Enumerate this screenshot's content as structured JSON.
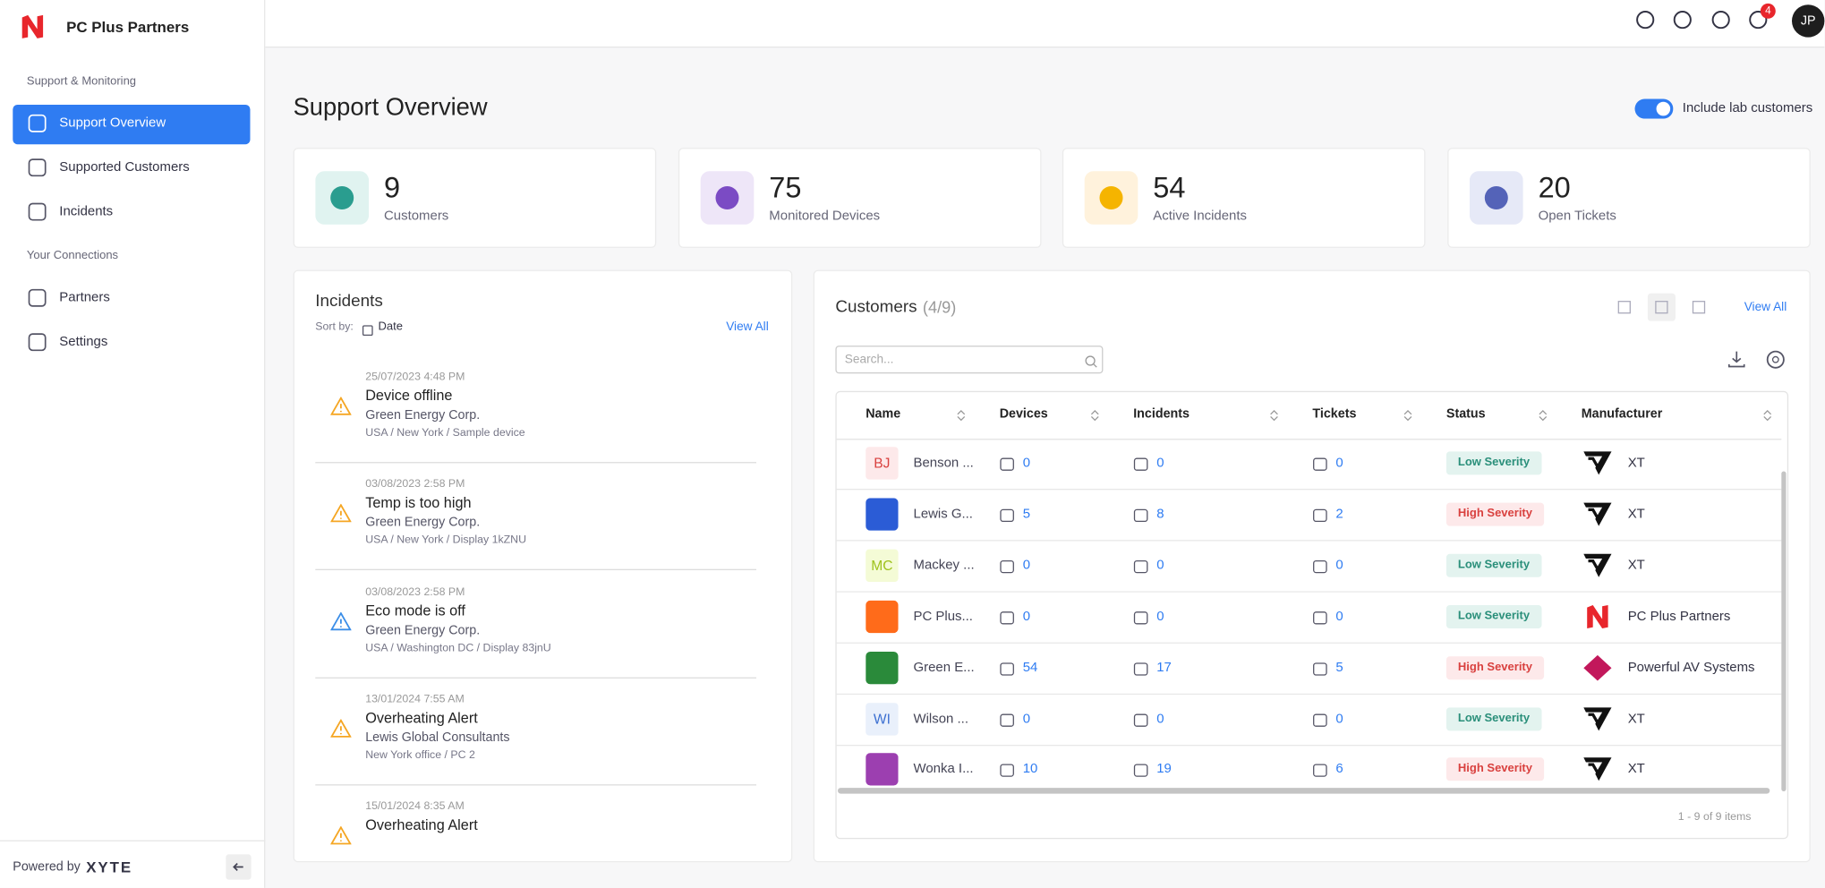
{
  "brand": "PC Plus Partners",
  "nav": {
    "sections": [
      {
        "title": "Support & Monitoring",
        "items": [
          "Support Overview",
          "Supported Customers",
          "Incidents"
        ]
      },
      {
        "title": "Your Connections",
        "items": [
          "Partners",
          "Settings"
        ]
      }
    ]
  },
  "footer": {
    "powered_by": "Powered by",
    "logo": "XYTE"
  },
  "header": {
    "notifications": 4,
    "avatar": "JP"
  },
  "page": {
    "title": "Support Overview",
    "toggle_label": "Include lab customers"
  },
  "stats": [
    {
      "value": 9,
      "label": "Customers"
    },
    {
      "value": 75,
      "label": "Monitored Devices"
    },
    {
      "value": 54,
      "label": "Active Incidents"
    },
    {
      "value": 20,
      "label": "Open Tickets"
    }
  ],
  "incidents": {
    "title": "Incidents",
    "sort_label": "Sort by:",
    "sort_value": "Date",
    "view_all": "View All",
    "items": [
      {
        "date": "25/07/2023 4:48 PM",
        "title": "Device offline",
        "customer": "Green Energy Corp.",
        "location": "USA / New York / Sample device"
      },
      {
        "date": "03/08/2023 2:58 PM",
        "title": "Temp is too high",
        "customer": "Green Energy Corp.",
        "location": "USA / New York / Display 1kZNU"
      },
      {
        "date": "03/08/2023 2:58 PM",
        "title": "Eco mode is off",
        "customer": "Green Energy Corp.",
        "location": "USA / Washington DC / Display 83jnU"
      },
      {
        "date": "13/01/2024 7:55 AM",
        "title": "Overheating Alert",
        "customer": "Lewis Global Consultants",
        "location": "New York office / PC 2"
      },
      {
        "date": "15/01/2024 8:35 AM",
        "title": "Overheating Alert"
      }
    ]
  },
  "customers": {
    "title": "Customers",
    "count": "(4/9)",
    "view_all": "View All",
    "search_placeholder": "Search...",
    "columns": [
      "Name",
      "Devices",
      "Incidents",
      "Tickets",
      "Status",
      "Manufacturer"
    ],
    "rows": [
      {
        "initials": "BJ",
        "name": "Benson ...",
        "devices": 0,
        "incidents": 0,
        "tickets": 0,
        "status": "Low Severity",
        "manufacturer": "XT"
      },
      {
        "name": "Lewis G...",
        "devices": 5,
        "incidents": 8,
        "tickets": 2,
        "status": "High Severity",
        "manufacturer": "XT"
      },
      {
        "initials": "MC",
        "name": "Mackey ...",
        "devices": 0,
        "incidents": 0,
        "tickets": 0,
        "status": "Low Severity",
        "manufacturer": "XT"
      },
      {
        "name": "PC Plus...",
        "devices": 0,
        "incidents": 0,
        "tickets": 0,
        "status": "Low Severity",
        "manufacturer": "PC Plus Partners"
      },
      {
        "name": "Green E...",
        "devices": 54,
        "incidents": 17,
        "tickets": 5,
        "status": "High Severity",
        "manufacturer": "Powerful AV Systems"
      },
      {
        "initials": "WI",
        "name": "Wilson ...",
        "devices": 0,
        "incidents": 0,
        "tickets": 0,
        "status": "Low Severity",
        "manufacturer": "XT"
      },
      {
        "name": "Wonka I...",
        "devices": 10,
        "incidents": 19,
        "tickets": 6,
        "status": "High Severity",
        "manufacturer": "XT"
      }
    ],
    "pagination": "1 - 9 of 9 items"
  }
}
